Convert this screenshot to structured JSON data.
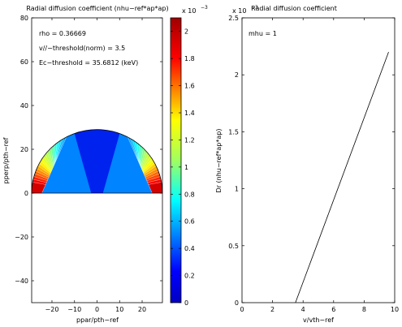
{
  "chart_data": [
    {
      "type": "heatmap",
      "title": "Radial diffusion coefficient (nhu−ref*ap*ap)",
      "xlabel": "ppar/pth−ref",
      "ylabel": "pperp/pth−ref",
      "xlim": [
        -29,
        29
      ],
      "ylim": [
        -50,
        80
      ],
      "xticks": [
        "−20",
        "−10",
        "0",
        "10",
        "20"
      ],
      "yticks": [
        "−40",
        "−20",
        "0",
        "20",
        "40",
        "60",
        "80"
      ],
      "annotations": [
        "rho = 0.36669",
        "v//−threshold(norm) = 3.5",
        "Ec−threshold = 35.6812 (keV)"
      ],
      "domain_radius": 29,
      "colorbar": {
        "min": 0,
        "max": 0.0021,
        "exponent_label": "x 10",
        "exponent": "−3",
        "ticks": [
          "0",
          "0.2",
          "0.4",
          "0.6",
          "0.8",
          "1",
          "1.2",
          "1.4",
          "1.6",
          "1.8",
          "2"
        ]
      },
      "colors": {
        "low": "#0022ee",
        "contour_map": "jet"
      }
    },
    {
      "type": "line",
      "title": "Radial diffusion coefficient",
      "xlabel": "v/vth−ref",
      "ylabel": "Dr (nhu−ref*ap*ap)",
      "xlim": [
        0,
        10
      ],
      "ylim": [
        0,
        0.0025
      ],
      "y_exponent_label": "x 10",
      "y_exponent": "−3",
      "xticks": [
        "0",
        "2",
        "4",
        "6",
        "8",
        "10"
      ],
      "yticks": [
        "0",
        "0.5",
        "1",
        "1.5",
        "2",
        "2.5"
      ],
      "legend_text": "mhu = 1",
      "series": [
        {
          "x": [
            3.5,
            9.6
          ],
          "y": [
            0,
            0.0022
          ],
          "color": "#000000"
        }
      ]
    }
  ]
}
